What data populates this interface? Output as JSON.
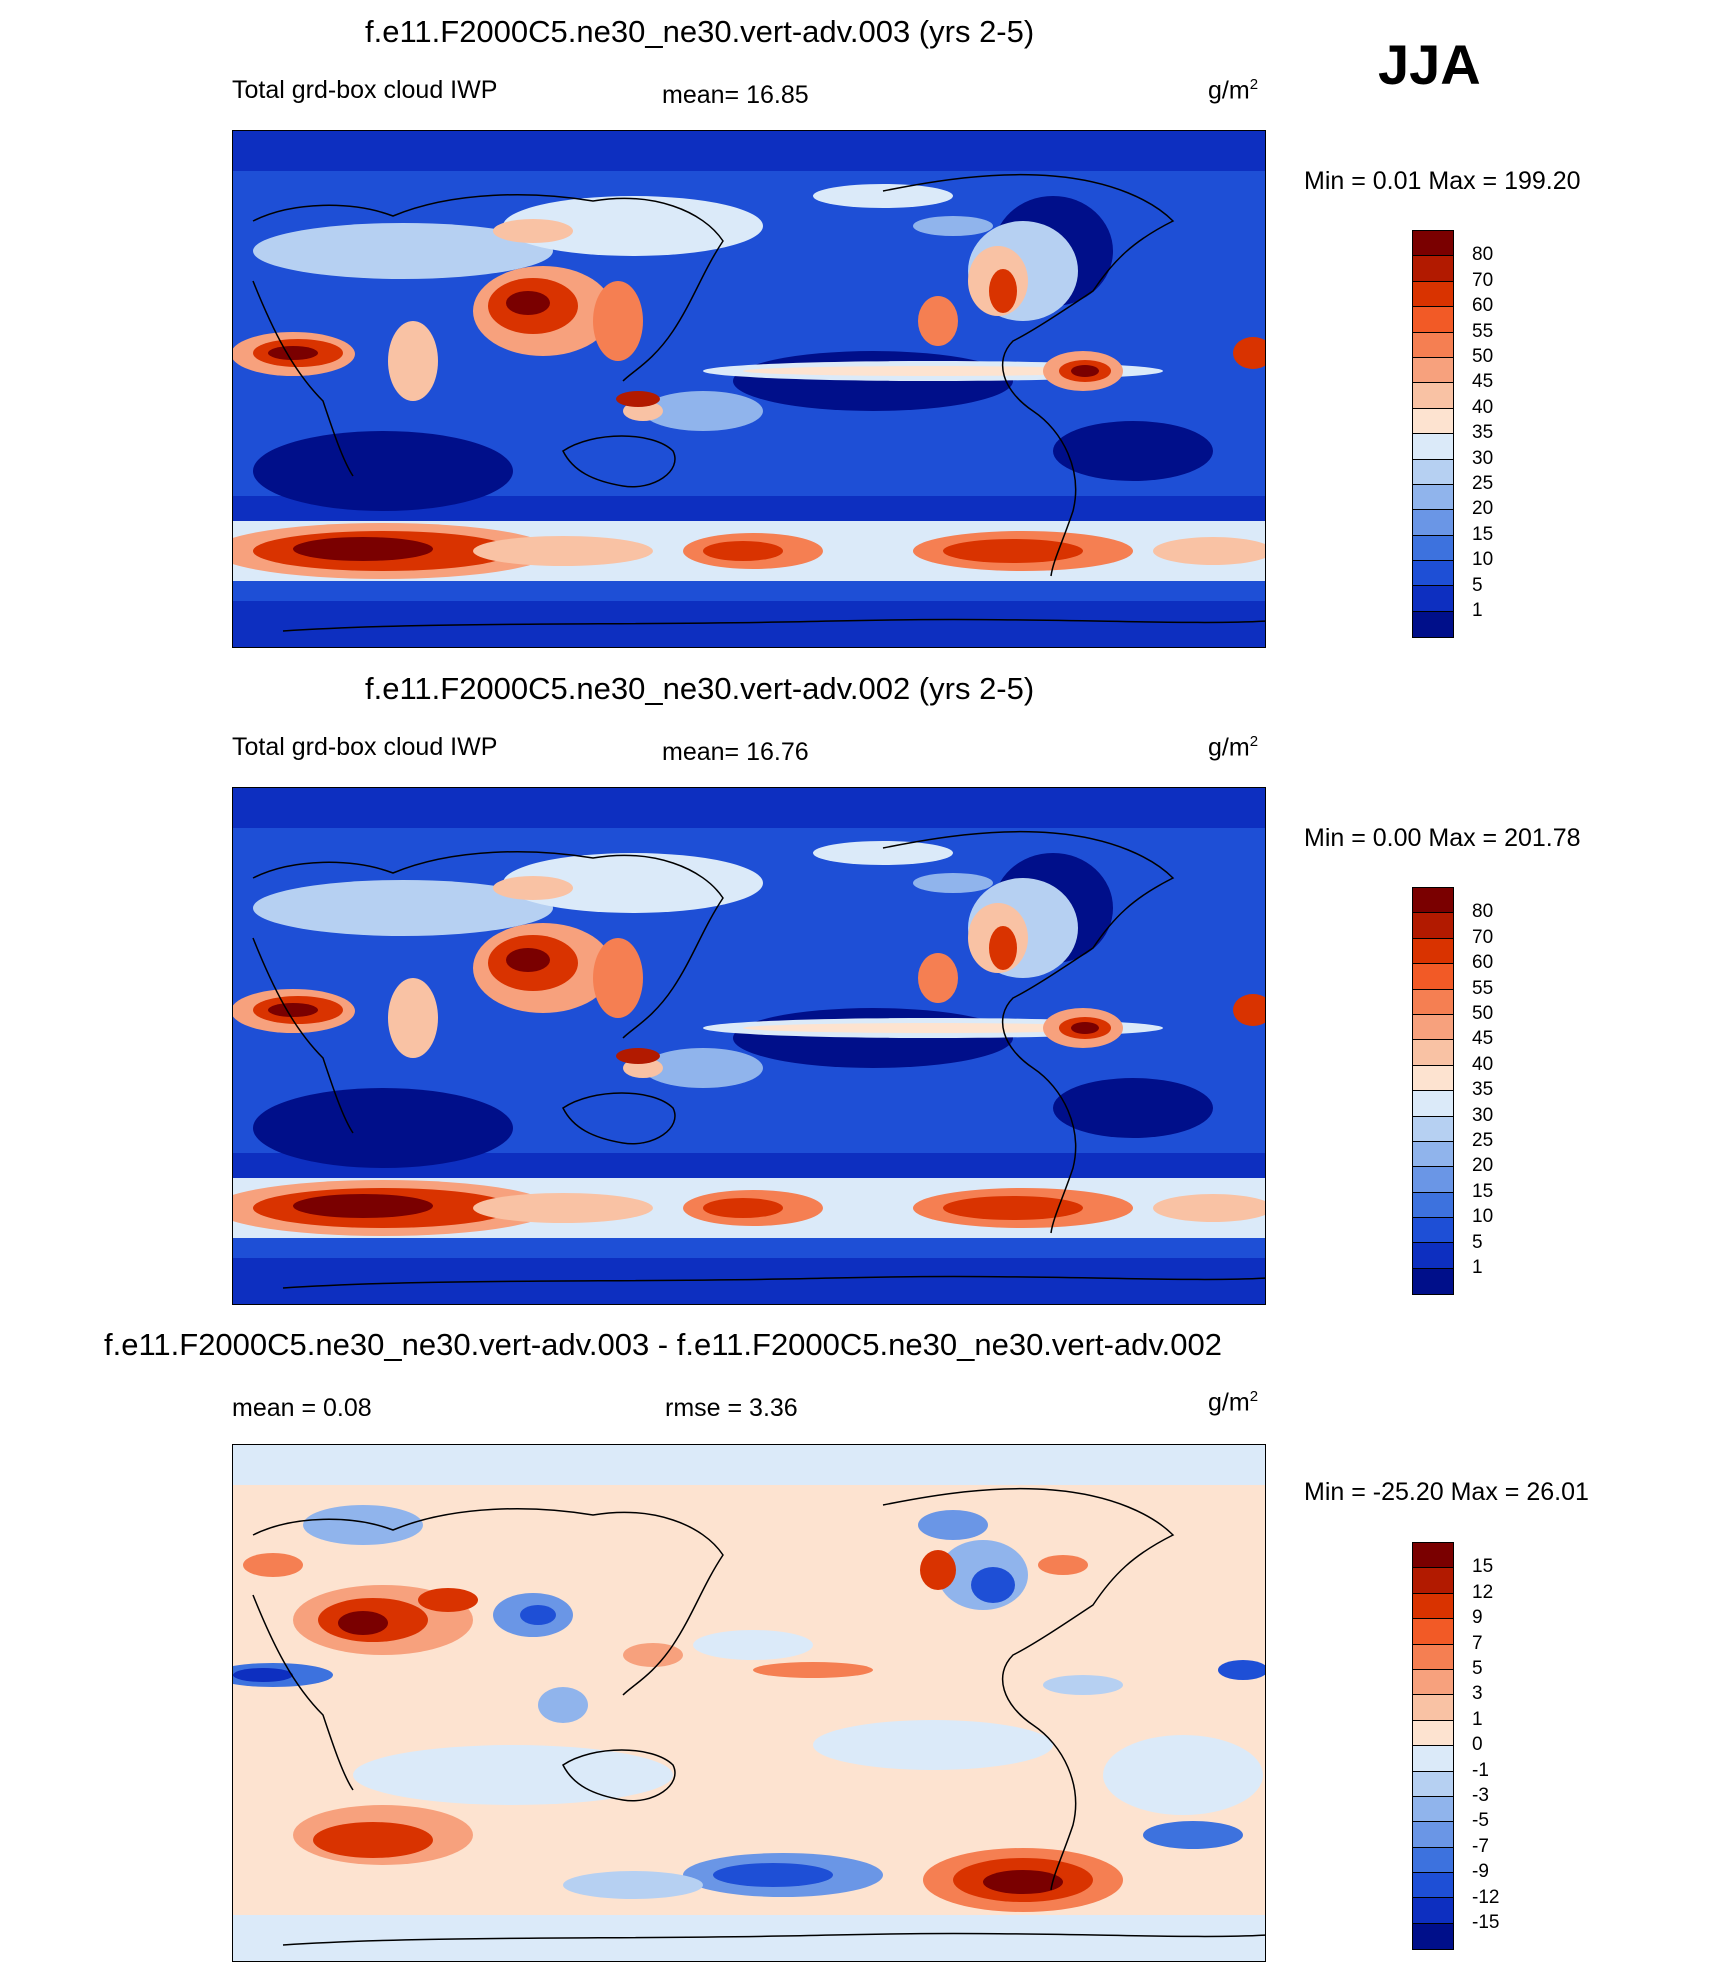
{
  "season": "JJA",
  "panels": [
    {
      "title": "f.e11.F2000C5.ne30_ne30.vert-adv.003 (yrs 2-5)",
      "left_label": "Total grd-box cloud IWP",
      "center_label": "mean=  16.85",
      "units": "g/m",
      "units_exp": "2",
      "minmax": "Min =   0.01 Max = 199.20"
    },
    {
      "title": "f.e11.F2000C5.ne30_ne30.vert-adv.002 (yrs 2-5)",
      "left_label": "Total grd-box cloud IWP",
      "center_label": "mean=  16.76",
      "units": "g/m",
      "units_exp": "2",
      "minmax": "Min =   0.00 Max = 201.78"
    },
    {
      "title": "f.e11.F2000C5.ne30_ne30.vert-adv.003 - f.e11.F2000C5.ne30_ne30.vert-adv.002",
      "left_label": "mean =   0.08",
      "center_label": "rmse =   3.36",
      "units": "g/m",
      "units_exp": "2",
      "minmax": "Min = -25.20 Max =  26.01"
    }
  ],
  "chart_data": [
    {
      "type": "heatmap",
      "title": "f.e11.F2000C5.ne30_ne30.vert-adv.003 (yrs 2-5)",
      "variable": "Total grd-box cloud IWP",
      "units": "g/m2",
      "mean": 16.85,
      "min": 0.01,
      "max": 199.2,
      "colorbar_levels": [
        80,
        70,
        60,
        55,
        50,
        45,
        40,
        35,
        30,
        25,
        20,
        15,
        10,
        5,
        1
      ],
      "colorbar_colors": [
        "#7a0000",
        "#b21a00",
        "#d93300",
        "#f25a26",
        "#f57f52",
        "#f7a17d",
        "#f9c2a4",
        "#fde3d0",
        "#dbeaf9",
        "#b6d0f2",
        "#90b4ec",
        "#6a96e6",
        "#3d72de",
        "#1e4fd6",
        "#0d2fc0",
        "#000f8a"
      ]
    },
    {
      "type": "heatmap",
      "title": "f.e11.F2000C5.ne30_ne30.vert-adv.002 (yrs 2-5)",
      "variable": "Total grd-box cloud IWP",
      "units": "g/m2",
      "mean": 16.76,
      "min": 0.0,
      "max": 201.78,
      "colorbar_levels": [
        80,
        70,
        60,
        55,
        50,
        45,
        40,
        35,
        30,
        25,
        20,
        15,
        10,
        5,
        1
      ],
      "colorbar_colors": [
        "#7a0000",
        "#b21a00",
        "#d93300",
        "#f25a26",
        "#f57f52",
        "#f7a17d",
        "#f9c2a4",
        "#fde3d0",
        "#dbeaf9",
        "#b6d0f2",
        "#90b4ec",
        "#6a96e6",
        "#3d72de",
        "#1e4fd6",
        "#0d2fc0",
        "#000f8a"
      ]
    },
    {
      "type": "heatmap",
      "title": "f.e11.F2000C5.ne30_ne30.vert-adv.003 - f.e11.F2000C5.ne30_ne30.vert-adv.002",
      "units": "g/m2",
      "mean": 0.08,
      "rmse": 3.36,
      "min": -25.2,
      "max": 26.01,
      "colorbar_levels": [
        15,
        12,
        9,
        7,
        5,
        3,
        1,
        0,
        -1,
        -3,
        -5,
        -7,
        -9,
        -12,
        -15
      ],
      "colorbar_colors": [
        "#7a0000",
        "#b21a00",
        "#d93300",
        "#f25a26",
        "#f57f52",
        "#f7a17d",
        "#f9c2a4",
        "#fde3d0",
        "#dbeaf9",
        "#b6d0f2",
        "#90b4ec",
        "#6a96e6",
        "#3d72de",
        "#1e4fd6",
        "#0d2fc0",
        "#000f8a"
      ]
    }
  ]
}
